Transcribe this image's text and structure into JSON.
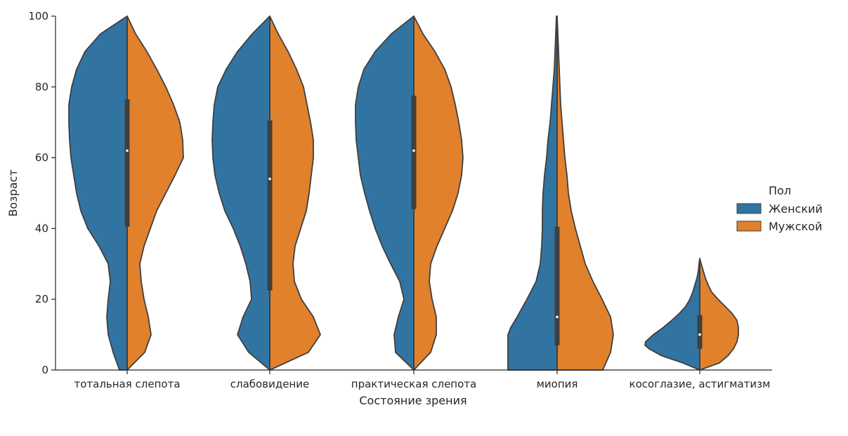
{
  "chart_data": {
    "type": "violin",
    "split": true,
    "xlabel": "Состояние зрения",
    "ylabel": "Возраст",
    "ylim": [
      0,
      100
    ],
    "yticks": [
      0,
      20,
      40,
      60,
      80,
      100
    ],
    "categories": [
      "тотальная слепота",
      "слабовидение",
      "практическая слепота",
      "миопия",
      "косоглазие, астигматизм"
    ],
    "legend": {
      "title": "Пол",
      "position": "right",
      "entries": [
        {
          "label": "Женский",
          "color": "#3274a1"
        },
        {
          "label": "Мужской",
          "color": "#e1812c"
        }
      ]
    },
    "violins": [
      {
        "category": "тотальная слепота",
        "range": [
          0,
          100
        ],
        "left": [
          [
            0,
            11
          ],
          [
            5,
            20
          ],
          [
            10,
            27
          ],
          [
            15,
            29
          ],
          [
            20,
            27
          ],
          [
            25,
            24
          ],
          [
            30,
            27
          ],
          [
            35,
            40
          ],
          [
            40,
            56
          ],
          [
            45,
            66
          ],
          [
            50,
            72
          ],
          [
            55,
            76
          ],
          [
            60,
            80
          ],
          [
            65,
            82
          ],
          [
            70,
            83
          ],
          [
            75,
            83
          ],
          [
            80,
            79
          ],
          [
            85,
            72
          ],
          [
            90,
            60
          ],
          [
            95,
            38
          ],
          [
            100,
            0
          ]
        ],
        "right": [
          [
            0,
            0
          ],
          [
            5,
            25
          ],
          [
            10,
            34
          ],
          [
            15,
            30
          ],
          [
            20,
            24
          ],
          [
            25,
            20
          ],
          [
            30,
            18
          ],
          [
            35,
            24
          ],
          [
            40,
            33
          ],
          [
            45,
            42
          ],
          [
            50,
            55
          ],
          [
            55,
            68
          ],
          [
            60,
            80
          ],
          [
            65,
            79
          ],
          [
            70,
            75
          ],
          [
            75,
            66
          ],
          [
            80,
            55
          ],
          [
            85,
            42
          ],
          [
            90,
            28
          ],
          [
            95,
            12
          ],
          [
            100,
            0
          ]
        ],
        "box": {
          "q1": 40.5,
          "median": 62,
          "q3": 76.5
        }
      },
      {
        "category": "слабовидение",
        "range": [
          0,
          100
        ],
        "left": [
          [
            0,
            0
          ],
          [
            5,
            30
          ],
          [
            10,
            46
          ],
          [
            15,
            38
          ],
          [
            20,
            26
          ],
          [
            25,
            28
          ],
          [
            30,
            34
          ],
          [
            35,
            42
          ],
          [
            40,
            52
          ],
          [
            45,
            64
          ],
          [
            50,
            72
          ],
          [
            55,
            78
          ],
          [
            60,
            81
          ],
          [
            65,
            82
          ],
          [
            70,
            81
          ],
          [
            75,
            79
          ],
          [
            80,
            74
          ],
          [
            85,
            62
          ],
          [
            90,
            46
          ],
          [
            95,
            25
          ],
          [
            100,
            0
          ]
        ],
        "right": [
          [
            0,
            0
          ],
          [
            5,
            55
          ],
          [
            10,
            72
          ],
          [
            15,
            62
          ],
          [
            20,
            45
          ],
          [
            25,
            35
          ],
          [
            30,
            33
          ],
          [
            35,
            36
          ],
          [
            40,
            44
          ],
          [
            45,
            52
          ],
          [
            50,
            56
          ],
          [
            55,
            59
          ],
          [
            60,
            62
          ],
          [
            65,
            62
          ],
          [
            70,
            58
          ],
          [
            75,
            53
          ],
          [
            80,
            48
          ],
          [
            85,
            38
          ],
          [
            90,
            26
          ],
          [
            95,
            12
          ],
          [
            100,
            0
          ]
        ],
        "box": {
          "q1": 22.5,
          "median": 54,
          "q3": 70.5
        }
      },
      {
        "category": "практическая слепота",
        "range": [
          0,
          100
        ],
        "left": [
          [
            0,
            0
          ],
          [
            5,
            26
          ],
          [
            10,
            28
          ],
          [
            15,
            22
          ],
          [
            20,
            14
          ],
          [
            25,
            20
          ],
          [
            30,
            33
          ],
          [
            35,
            45
          ],
          [
            40,
            55
          ],
          [
            45,
            63
          ],
          [
            50,
            70
          ],
          [
            55,
            76
          ],
          [
            60,
            79
          ],
          [
            65,
            82
          ],
          [
            70,
            83
          ],
          [
            75,
            83
          ],
          [
            80,
            79
          ],
          [
            85,
            71
          ],
          [
            90,
            55
          ],
          [
            95,
            32
          ],
          [
            100,
            0
          ]
        ],
        "right": [
          [
            0,
            0
          ],
          [
            5,
            24
          ],
          [
            10,
            32
          ],
          [
            15,
            32
          ],
          [
            20,
            26
          ],
          [
            25,
            22
          ],
          [
            30,
            24
          ],
          [
            35,
            33
          ],
          [
            40,
            44
          ],
          [
            45,
            55
          ],
          [
            50,
            63
          ],
          [
            55,
            68
          ],
          [
            60,
            70
          ],
          [
            65,
            68
          ],
          [
            70,
            64
          ],
          [
            75,
            59
          ],
          [
            80,
            53
          ],
          [
            85,
            44
          ],
          [
            90,
            30
          ],
          [
            95,
            13
          ],
          [
            100,
            0
          ]
        ],
        "box": {
          "q1": 45.5,
          "median": 62,
          "q3": 77.5
        }
      },
      {
        "category": "миопия",
        "range": [
          0,
          100
        ],
        "left": [
          [
            0,
            70
          ],
          [
            5,
            70
          ],
          [
            10,
            70
          ],
          [
            12,
            66
          ],
          [
            15,
            57
          ],
          [
            20,
            43
          ],
          [
            25,
            30
          ],
          [
            30,
            24
          ],
          [
            35,
            22
          ],
          [
            40,
            21
          ],
          [
            45,
            21
          ],
          [
            50,
            20
          ],
          [
            55,
            18
          ],
          [
            60,
            15
          ],
          [
            65,
            13
          ],
          [
            70,
            10
          ],
          [
            75,
            8
          ],
          [
            80,
            6
          ],
          [
            85,
            4
          ],
          [
            90,
            3
          ],
          [
            95,
            2
          ],
          [
            100,
            1
          ]
        ],
        "right": [
          [
            0,
            65
          ],
          [
            5,
            76
          ],
          [
            10,
            80
          ],
          [
            15,
            76
          ],
          [
            20,
            64
          ],
          [
            25,
            51
          ],
          [
            30,
            40
          ],
          [
            35,
            33
          ],
          [
            40,
            26
          ],
          [
            45,
            20
          ],
          [
            50,
            16
          ],
          [
            55,
            14
          ],
          [
            60,
            11
          ],
          [
            65,
            9
          ],
          [
            70,
            7
          ],
          [
            75,
            5
          ],
          [
            80,
            4
          ],
          [
            85,
            3
          ],
          [
            90,
            2
          ],
          [
            95,
            1
          ],
          [
            100,
            0
          ]
        ],
        "box": {
          "q1": 7,
          "median": 15,
          "q3": 40.5
        }
      },
      {
        "category": "косоглазие, астигматизм",
        "range": [
          0,
          31.5
        ],
        "left": [
          [
            0,
            0
          ],
          [
            2,
            24
          ],
          [
            4,
            54
          ],
          [
            6,
            72
          ],
          [
            7,
            78
          ],
          [
            8,
            77
          ],
          [
            10,
            66
          ],
          [
            12,
            52
          ],
          [
            14,
            40
          ],
          [
            16,
            29
          ],
          [
            18,
            20
          ],
          [
            20,
            14
          ],
          [
            22,
            10
          ],
          [
            24,
            7
          ],
          [
            26,
            4
          ],
          [
            28,
            2
          ],
          [
            30,
            1
          ],
          [
            31.5,
            0
          ]
        ],
        "right": [
          [
            0,
            0
          ],
          [
            2,
            28
          ],
          [
            4,
            40
          ],
          [
            6,
            48
          ],
          [
            8,
            53
          ],
          [
            10,
            55
          ],
          [
            12,
            55
          ],
          [
            14,
            53
          ],
          [
            16,
            46
          ],
          [
            18,
            36
          ],
          [
            20,
            26
          ],
          [
            22,
            17
          ],
          [
            24,
            12
          ],
          [
            26,
            8
          ],
          [
            28,
            5
          ],
          [
            30,
            2
          ],
          [
            31.5,
            0
          ]
        ],
        "box": {
          "q1": 6,
          "median": 10,
          "q3": 15.5
        }
      }
    ]
  }
}
